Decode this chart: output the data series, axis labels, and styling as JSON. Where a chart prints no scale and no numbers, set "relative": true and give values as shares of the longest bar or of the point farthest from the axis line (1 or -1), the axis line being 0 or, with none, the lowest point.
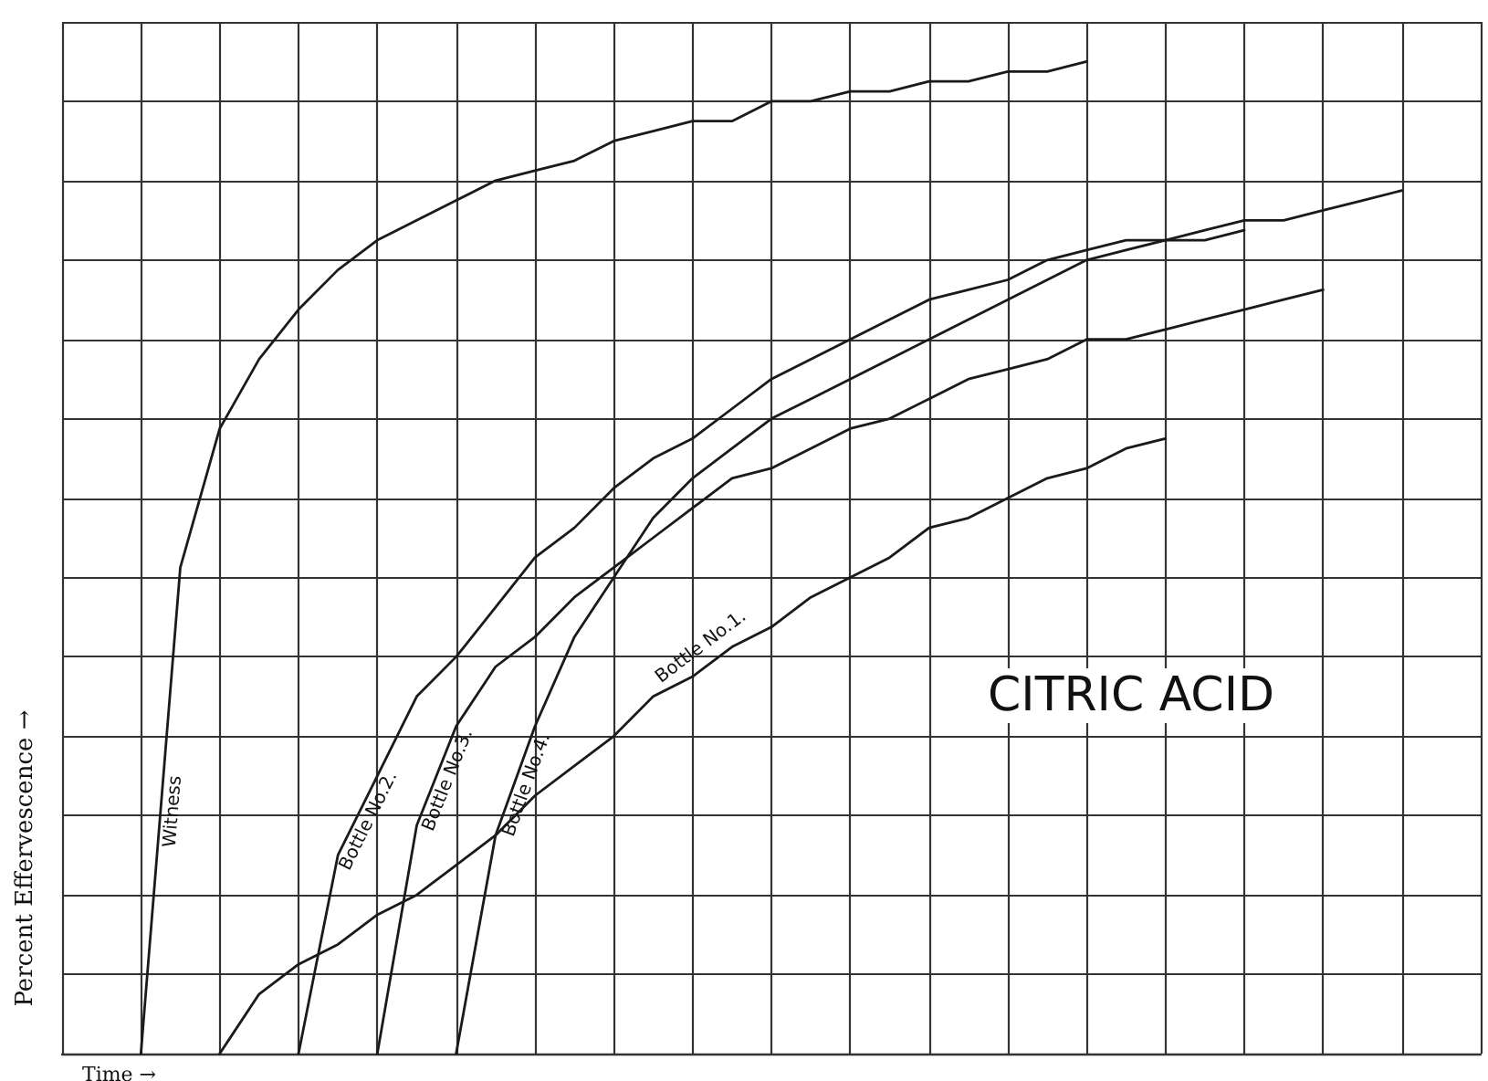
{
  "chart_data": {
    "type": "line",
    "title": "CITRIC ACID",
    "xlabel": "Time →",
    "ylabel": "Percent Effervescence →",
    "relative": true,
    "grid": true,
    "legend": false,
    "tick_labels": false,
    "marker": "none",
    "line_style": "solid",
    "categories": [
      null,
      null,
      null,
      null,
      null,
      null,
      null,
      null,
      null,
      null,
      null,
      null,
      null,
      null,
      null,
      null,
      null,
      null,
      null,
      null,
      null,
      null,
      null,
      null,
      null,
      null,
      null,
      null,
      null,
      null,
      null,
      null,
      null,
      null,
      null,
      null,
      null
    ],
    "series": [
      {
        "name": "Witness",
        "color": "#1a1a1a",
        "values": [
          null,
          null,
          0,
          0.49,
          0.63,
          0.7,
          0.75,
          0.79,
          0.82,
          0.84,
          0.86,
          0.88,
          0.89,
          0.9,
          0.92,
          0.93,
          0.94,
          0.94,
          0.96,
          0.96,
          0.97,
          0.97,
          0.98,
          0.98,
          0.99,
          0.99,
          1,
          null,
          null,
          null,
          null,
          null,
          null,
          null,
          null,
          null,
          null
        ]
      },
      {
        "name": "Bottle No.1.",
        "color": "#1a1a1a",
        "values": [
          null,
          null,
          null,
          null,
          0,
          0.06,
          0.09,
          0.11,
          0.14,
          0.16,
          0.19,
          0.22,
          0.26,
          0.29,
          0.32,
          0.36,
          0.38,
          0.41,
          0.43,
          0.46,
          0.48,
          0.5,
          0.53,
          0.54,
          0.56,
          0.58,
          0.59,
          0.61,
          0.62,
          null,
          null,
          null,
          null,
          null,
          null,
          null,
          null
        ]
      },
      {
        "name": "Bottle No.2.",
        "color": "#1a1a1a",
        "values": [
          null,
          null,
          null,
          null,
          null,
          null,
          0,
          0.2,
          0.28,
          0.36,
          0.4,
          0.45,
          0.5,
          0.53,
          0.57,
          0.6,
          0.62,
          0.65,
          0.68,
          0.7,
          0.72,
          0.74,
          0.76,
          0.77,
          0.78,
          0.8,
          0.81,
          0.82,
          0.82,
          0.82,
          0.83,
          null,
          null,
          null,
          null,
          null,
          null
        ]
      },
      {
        "name": "Bottle No.3.",
        "color": "#1a1a1a",
        "values": [
          null,
          null,
          null,
          null,
          null,
          null,
          null,
          null,
          0,
          0.23,
          0.33,
          0.39,
          0.42,
          0.46,
          0.49,
          0.52,
          0.55,
          0.58,
          0.59,
          0.61,
          0.63,
          0.64,
          0.66,
          0.68,
          0.69,
          0.7,
          0.72,
          0.72,
          0.73,
          0.74,
          0.75,
          0.76,
          0.77,
          null,
          null,
          null,
          null
        ]
      },
      {
        "name": "Bottle No.4.",
        "color": "#1a1a1a",
        "values": [
          null,
          null,
          null,
          null,
          null,
          null,
          null,
          null,
          null,
          null,
          0,
          0.22,
          0.33,
          0.42,
          0.48,
          0.54,
          0.58,
          0.61,
          0.64,
          0.66,
          0.68,
          0.7,
          0.72,
          0.74,
          0.76,
          0.78,
          0.8,
          0.81,
          0.82,
          0.83,
          0.84,
          0.84,
          0.85,
          0.86,
          0.87,
          null,
          null
        ]
      }
    ]
  }
}
